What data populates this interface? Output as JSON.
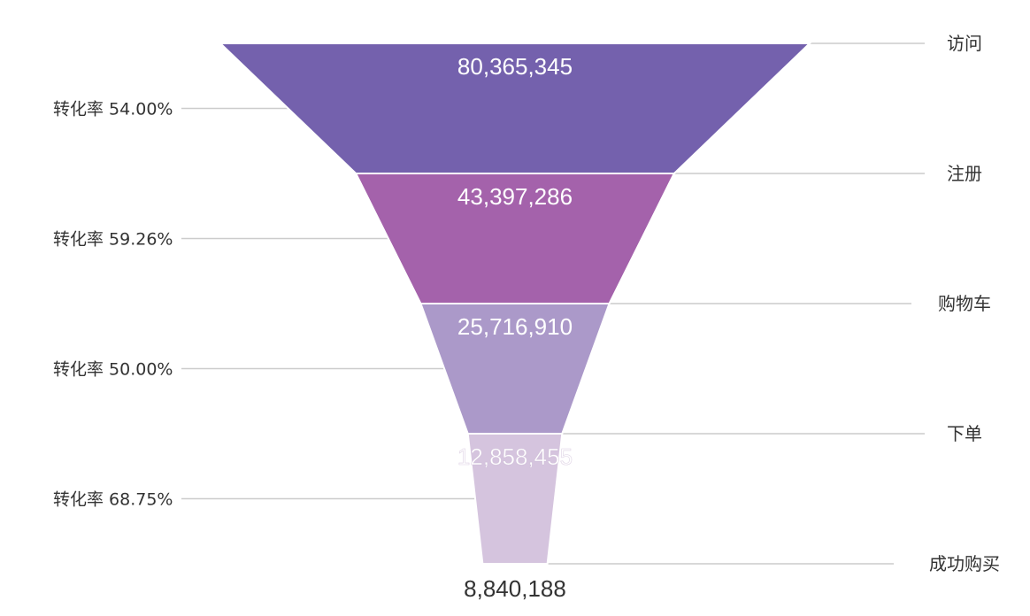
{
  "chart_data": {
    "type": "funnel",
    "title": "",
    "stages": [
      {
        "label": "访问",
        "value": 80365345,
        "value_label": "80,365,345",
        "color": "#7461ad"
      },
      {
        "label": "注册",
        "value": 43397286,
        "value_label": "43,397,286",
        "color": "#a462ab"
      },
      {
        "label": "购物车",
        "value": 25716910,
        "value_label": "25,716,910",
        "color": "#ab99c9"
      },
      {
        "label": "下单",
        "value": 12858455,
        "value_label": "12,858,455",
        "color": "#d5c4de"
      },
      {
        "label": "成功购买",
        "value": 8840188,
        "value_label": "8,840,188",
        "color": "#d5c4de"
      }
    ],
    "conversion_rates": [
      {
        "label": "转化率 54.00%",
        "value": 54.0
      },
      {
        "label": "转化率 59.26%",
        "value": 59.26
      },
      {
        "label": "转化率 50.00%",
        "value": 50.0
      },
      {
        "label": "转化率 68.75%",
        "value": 68.75
      }
    ]
  },
  "colors": {
    "connector": "#cccccc",
    "inner_label": "#ffffff",
    "outer_label": "#333333"
  }
}
